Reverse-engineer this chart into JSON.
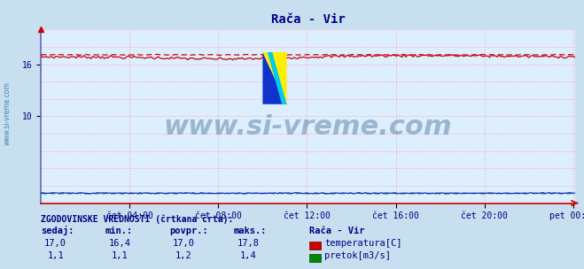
{
  "title": "Rača - Vir",
  "title_color": "#000080",
  "bg_color": "#c8dff0",
  "plot_bg_color": "#ddeeff",
  "grid_color": "#ffaaaa",
  "x_tick_labels": [
    "čet 04:00",
    "čet 08:00",
    "čet 12:00",
    "čet 16:00",
    "čet 20:00",
    "pet 00:00"
  ],
  "x_tick_positions": [
    0.166,
    0.332,
    0.498,
    0.664,
    0.83,
    0.996
  ],
  "ylim_min": 0,
  "ylim_max": 20,
  "ytick_vals": [
    10,
    16
  ],
  "ytick_labels": [
    "10",
    "16"
  ],
  "temp_color": "#cc0000",
  "flow_color": "#00aa00",
  "flow_solid_color": "#2222cc",
  "watermark_text": "www.si-vreme.com",
  "watermark_color": "#1a5276",
  "watermark_alpha": 0.35,
  "watermark_fontsize": 22,
  "sidebar_text": "www.si-vreme.com",
  "sidebar_color": "#1a6aaa",
  "temp_base": 16.85,
  "temp_hist_base": 17.1,
  "flow_base": 1.15,
  "flow_hist_base": 1.1,
  "temp_current": 17.0,
  "temp_min": 16.4,
  "temp_avg": 17.0,
  "temp_max": 17.8,
  "flow_current": 1.1,
  "flow_min": 1.1,
  "flow_avg": 1.2,
  "flow_max": 1.4,
  "legend_title": "Rača - Vir",
  "legend_label1": "temperatura[C]",
  "legend_label2": "pretok[m3/s]",
  "info_title": "ZGODOVINSKE VREDNOSTI (črtkana črta):",
  "col_sedaj": "sedaj:",
  "col_min": "min.:",
  "col_povpr": "povpr.:",
  "col_maks": "maks.:",
  "n_points": 288,
  "left_spine_color": "#6666bb",
  "bottom_spine_color": "#cc0000",
  "icon_blue": "#1133cc",
  "icon_yellow": "#ffee00",
  "icon_cyan": "#00ccee"
}
